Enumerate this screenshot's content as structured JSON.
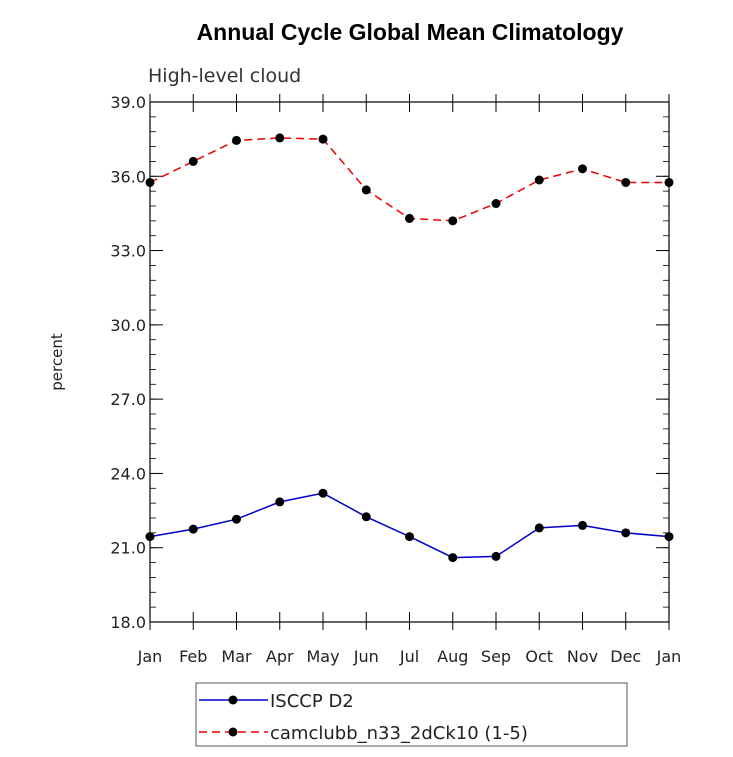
{
  "chart_data": {
    "type": "line",
    "title": "Annual Cycle Global Mean Climatology",
    "subtitle": "High-level cloud",
    "xlabel": "",
    "ylabel": "percent",
    "categories": [
      "Jan",
      "Feb",
      "Mar",
      "Apr",
      "May",
      "Jun",
      "Jul",
      "Aug",
      "Sep",
      "Oct",
      "Nov",
      "Dec",
      "Jan"
    ],
    "ylim": [
      18.0,
      39.0
    ],
    "yticks": [
      18.0,
      21.0,
      24.0,
      27.0,
      30.0,
      33.0,
      36.0,
      39.0
    ],
    "ytick_labels": [
      "18.0",
      "21.0",
      "24.0",
      "27.0",
      "30.0",
      "33.0",
      "36.0",
      "39.0"
    ],
    "grid": false,
    "legend_position": "bottom",
    "series": [
      {
        "name": "ISCCP D2",
        "color": "#0000cc",
        "dash": "solid",
        "marker": "circle",
        "values": [
          21.45,
          21.75,
          22.15,
          22.85,
          23.2,
          22.25,
          21.45,
          20.6,
          20.65,
          21.8,
          21.9,
          21.6,
          21.45
        ]
      },
      {
        "name": "camclubb_n33_2dCk10 (1-5)",
        "color": "#ee0000",
        "dash": "dashed",
        "marker": "circle",
        "values": [
          35.75,
          36.6,
          37.45,
          37.55,
          37.5,
          35.45,
          34.3,
          34.2,
          34.9,
          35.85,
          36.3,
          35.75,
          35.75
        ]
      }
    ]
  }
}
